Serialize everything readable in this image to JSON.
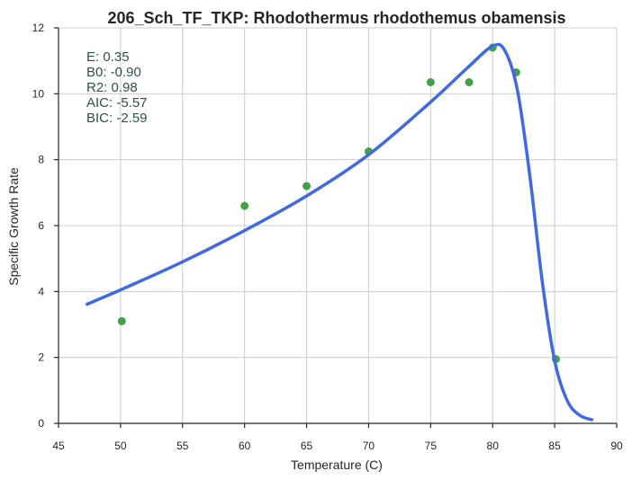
{
  "chart_data": {
    "type": "scatter",
    "title": "206_Sch_TF_TKP: Rhodothermus  rhodothemus obamensis",
    "xlabel": "Temperature (C)",
    "ylabel": "Specific Growth Rate",
    "xlim": [
      45,
      90
    ],
    "ylim": [
      0,
      12
    ],
    "xticks": [
      45,
      50,
      55,
      60,
      65,
      70,
      75,
      80,
      85,
      90
    ],
    "yticks": [
      0,
      2,
      4,
      6,
      8,
      10,
      12
    ],
    "grid": true,
    "points": {
      "x": [
        50.1,
        60.0,
        65.0,
        70.0,
        75.0,
        78.1,
        80.0,
        81.9,
        85.1
      ],
      "y": [
        3.1,
        6.6,
        7.2,
        8.25,
        10.35,
        10.35,
        11.4,
        10.65,
        1.95
      ],
      "color": "#43a047"
    },
    "fit_line": {
      "x": [
        47.2,
        50,
        55,
        60,
        65,
        70,
        75,
        78,
        80,
        81,
        82,
        83,
        84,
        85,
        86,
        87,
        88.1
      ],
      "y": [
        3.6,
        4.05,
        4.9,
        5.85,
        6.9,
        8.15,
        9.75,
        10.8,
        11.45,
        11.3,
        10.1,
        7.5,
        4.3,
        1.9,
        0.7,
        0.25,
        0.1
      ],
      "color": "#4169e1"
    },
    "annotations": [
      "E:  0.35",
      "B0:  -0.90",
      "R2:  0.98",
      "AIC: -5.57",
      "BIC: -2.59"
    ]
  }
}
